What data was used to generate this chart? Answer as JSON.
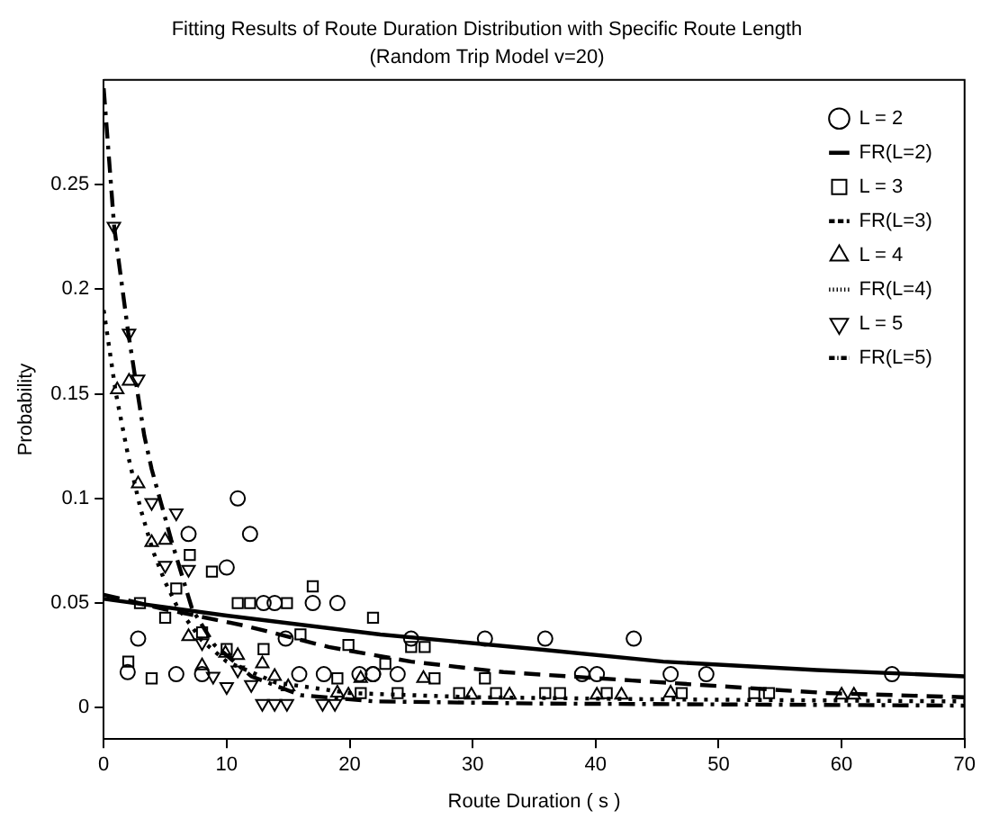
{
  "chart_data": {
    "type": "scatter",
    "title": "Fitting Results of Route Duration Distribution with Specific Route Length",
    "subtitle": "(Random Trip Model v=20)",
    "xlabel": "Route Duration ( s )",
    "ylabel": "Probability",
    "xlim": [
      0,
      70
    ],
    "ylim": [
      -0.015,
      0.3
    ],
    "xticks": [
      0,
      10,
      20,
      30,
      40,
      50,
      60,
      70
    ],
    "yticks": [
      0,
      0.05,
      0.1,
      0.15,
      0.2,
      0.25
    ],
    "grid": false,
    "legend": "top right",
    "series": [
      {
        "name": "L = 2",
        "type": "scatter",
        "marker": "circle",
        "color": "#000000",
        "x": [
          10.9,
          11.9,
          6.9,
          10.0,
          2.8,
          1.95,
          5.9,
          8.0,
          13.0,
          13.9,
          17.0,
          19.0,
          14.8,
          15.9,
          17.9,
          20.8,
          21.9,
          25.0,
          31.0,
          35.9,
          43.1,
          21.9,
          23.9,
          38.9,
          40.1,
          46.1,
          49.0,
          64.1
        ],
        "values": [
          0.1,
          0.083,
          0.083,
          0.067,
          0.033,
          0.017,
          0.016,
          0.016,
          0.05,
          0.05,
          0.05,
          0.05,
          0.033,
          0.016,
          0.016,
          0.016,
          0.016,
          0.033,
          0.033,
          0.033,
          0.033,
          0.016,
          0.016,
          0.016,
          0.016,
          0.016,
          0.016,
          0.016
        ]
      },
      {
        "name": "FR(L=2)",
        "type": "line",
        "marker": "none",
        "line_style": "solid",
        "color": "#000000",
        "x": [
          0,
          10,
          22.5,
          35.2,
          45.5,
          58,
          70
        ],
        "values": [
          0.052,
          0.044,
          0.035,
          0.028,
          0.022,
          0.018,
          0.015
        ]
      },
      {
        "name": "L = 3",
        "type": "scatter",
        "marker": "square",
        "color": "#000000",
        "x": [
          2.0,
          3.9,
          2.95,
          5.0,
          5.9,
          7.0,
          8.8,
          8.0,
          10.0,
          13.0,
          16.0,
          17.0,
          19.9,
          19.0,
          20.9,
          21.9,
          10.9,
          11.9,
          14.9,
          25.0,
          26.1,
          26.9,
          31.0,
          22.9,
          23.9,
          28.9,
          31.9,
          35.9,
          37.1,
          40.9,
          47.0,
          52.9,
          54.1
        ],
        "values": [
          0.022,
          0.014,
          0.05,
          0.043,
          0.057,
          0.073,
          0.065,
          0.036,
          0.028,
          0.028,
          0.035,
          0.058,
          0.03,
          0.014,
          0.007,
          0.043,
          0.05,
          0.05,
          0.05,
          0.029,
          0.029,
          0.014,
          0.014,
          0.021,
          0.007,
          0.007,
          0.007,
          0.007,
          0.007,
          0.007,
          0.007,
          0.007,
          0.007
        ]
      },
      {
        "name": "FR(L=3)",
        "type": "line",
        "marker": "none",
        "line_style": "dashed",
        "color": "#000000",
        "x": [
          0,
          5,
          11.6,
          18.3,
          25,
          32.5,
          43,
          58.7,
          70
        ],
        "values": [
          0.054,
          0.047,
          0.039,
          0.029,
          0.022,
          0.017,
          0.013,
          0.007,
          0.005
        ]
      },
      {
        "name": "L = 4",
        "type": "scatter",
        "marker": "triangle",
        "color": "#000000",
        "x": [
          1.1,
          2.06,
          2.8,
          3.9,
          5.0,
          6.9,
          8.0,
          9.9,
          10.9,
          12.9,
          13.9,
          15.0,
          19.0,
          19.9,
          20.9,
          26.0,
          29.9,
          33.0,
          40.1,
          42.1,
          46.1,
          60.0,
          61.0
        ],
        "values": [
          0.152,
          0.156,
          0.107,
          0.079,
          0.08,
          0.034,
          0.02,
          0.026,
          0.025,
          0.021,
          0.015,
          0.01,
          0.007,
          0.006,
          0.014,
          0.014,
          0.006,
          0.006,
          0.006,
          0.006,
          0.007,
          0.006,
          0.006
        ]
      },
      {
        "name": "FR(L=4)",
        "type": "line",
        "marker": "none",
        "line_style": "dotted",
        "color": "#000000",
        "x": [
          0,
          1,
          2,
          3,
          4,
          5,
          6,
          8,
          10,
          14,
          20,
          30,
          45,
          70
        ],
        "values": [
          0.19,
          0.15,
          0.12,
          0.095,
          0.075,
          0.06,
          0.048,
          0.032,
          0.022,
          0.012,
          0.007,
          0.005,
          0.004,
          0.003
        ]
      },
      {
        "name": "L = 5",
        "type": "scatter",
        "marker": "triangle_down",
        "color": "#000000",
        "x": [
          0.83,
          2.06,
          2.8,
          3.9,
          5.9,
          5.0,
          6.9,
          8.0,
          8.9,
          10.0,
          12.0,
          10.9,
          12.9,
          13.9,
          14.9,
          17.8,
          18.8
        ],
        "values": [
          0.23,
          0.179,
          0.157,
          0.098,
          0.093,
          0.068,
          0.066,
          0.031,
          0.015,
          0.01,
          0.011,
          0.018,
          0.002,
          0.002,
          0.002,
          0.002,
          0.002
        ]
      },
      {
        "name": "FR(L=5)",
        "type": "line",
        "marker": "none",
        "line_style": "dashdot",
        "color": "#000000",
        "x": [
          0,
          0.85,
          2,
          3.3,
          3.9,
          5.5,
          7.2,
          9,
          12,
          16,
          22,
          35,
          70
        ],
        "values": [
          0.296,
          0.23,
          0.179,
          0.13,
          0.114,
          0.08,
          0.047,
          0.03,
          0.015,
          0.006,
          0.003,
          0.002,
          0.001
        ]
      }
    ]
  }
}
